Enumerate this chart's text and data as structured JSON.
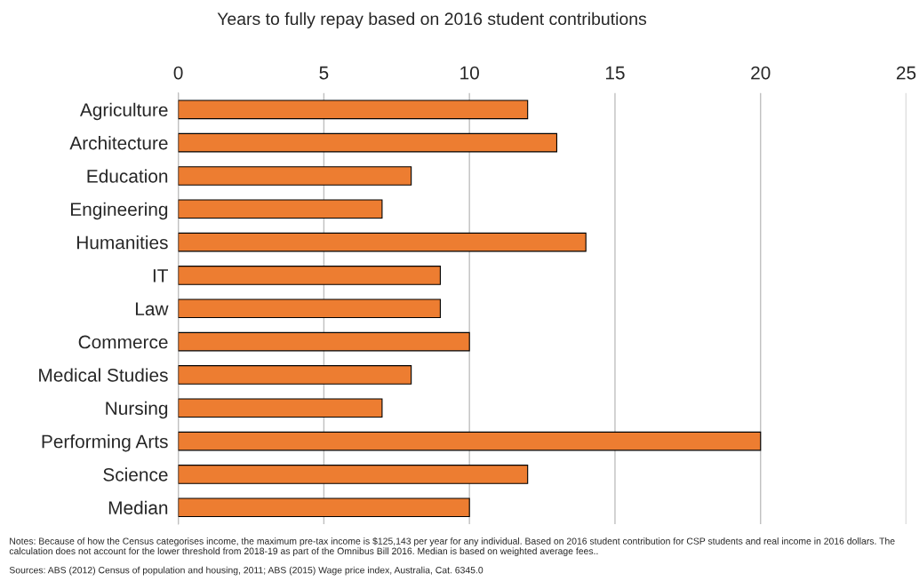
{
  "chart_data": {
    "type": "bar",
    "orientation": "horizontal",
    "title": "Years to fully repay based on 2016 student contributions",
    "categories": [
      "Agriculture",
      "Architecture",
      "Education",
      "Engineering",
      "Humanities",
      "IT",
      "Law",
      "Commerce",
      "Medical Studies",
      "Nursing",
      "Performing Arts",
      "Science",
      "Median"
    ],
    "values": [
      12,
      13,
      8,
      7,
      14,
      9,
      9,
      10,
      8,
      7,
      20,
      12,
      10
    ],
    "color": "#ed7d31",
    "xlim": [
      0,
      25
    ],
    "xticks": [
      0,
      5,
      10,
      15,
      20,
      25
    ],
    "grid": "x",
    "annotations": [
      "Notes: Because of how the Census categorises income, the maximum pre-tax income is $125,143 per year for any individual. Based on 2016 student contribution for CSP students and real income in 2016 dollars. The calculation does not account for the lower threshold from 2018-19 as part of the Omnibus Bill 2016. Median is based on weighted average fees..",
      "Sources: ABS (2012) Census of population and housing, 2011; ABS (2015) Wage price index, Australia, Cat. 6345.0"
    ]
  }
}
